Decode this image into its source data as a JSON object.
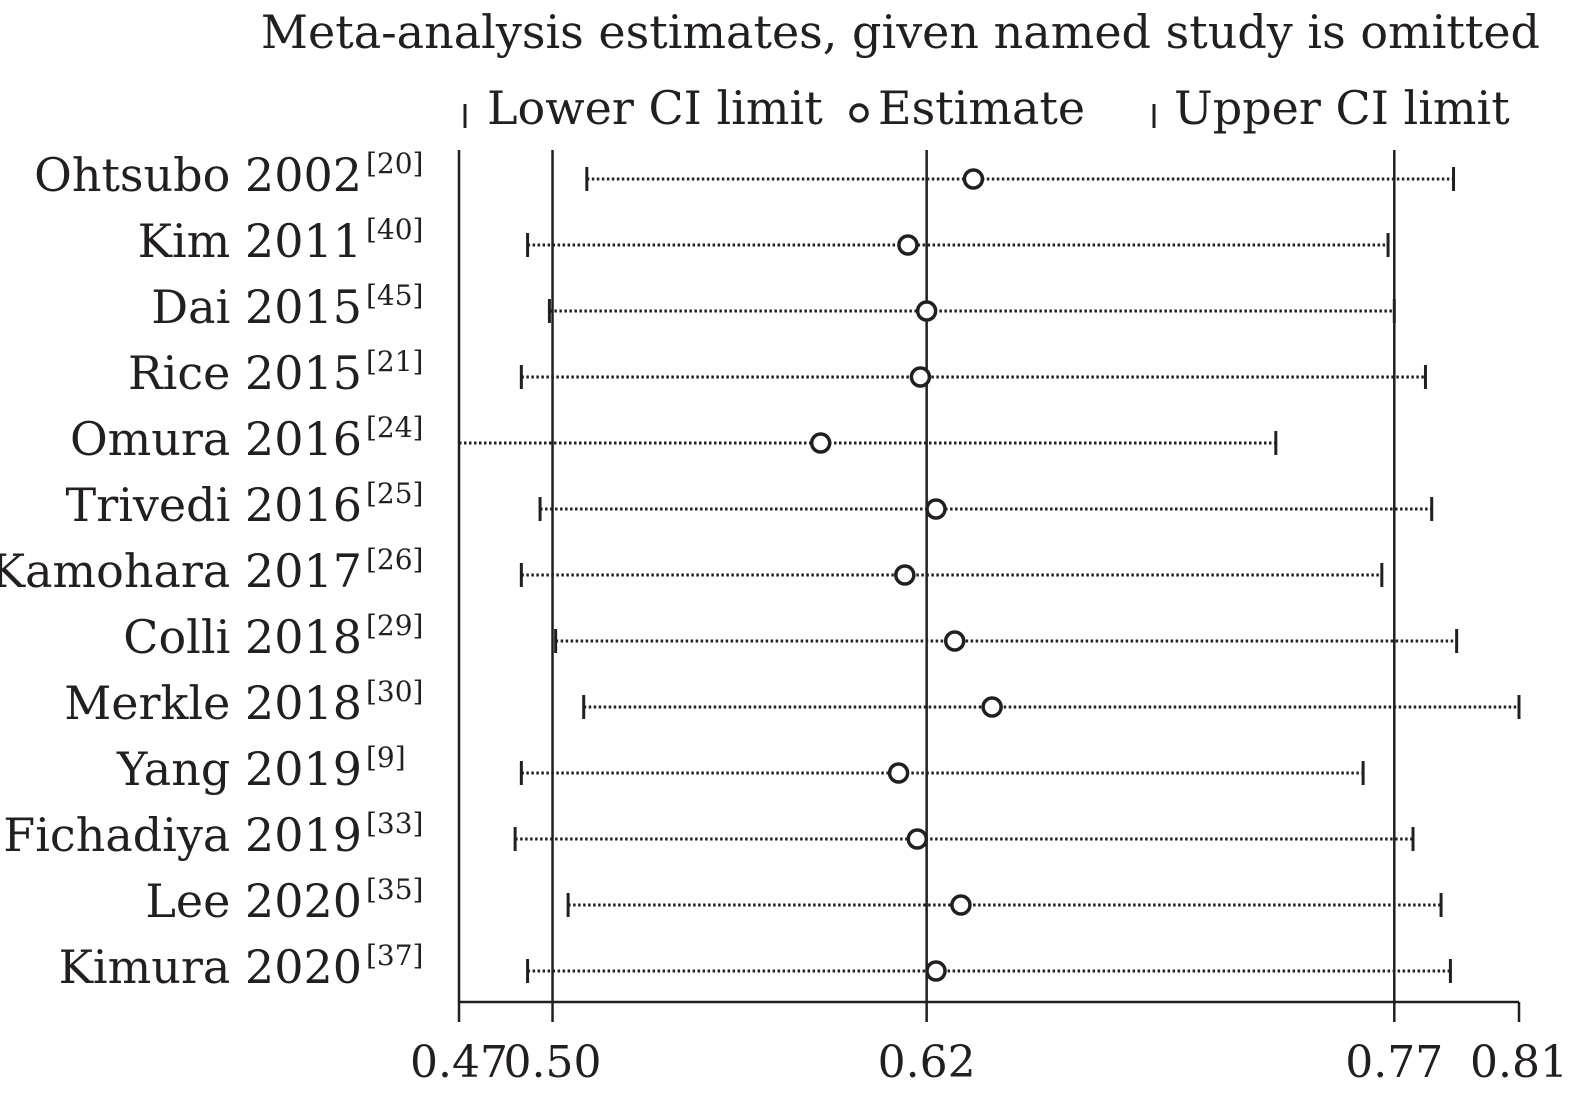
{
  "chart_data": {
    "type": "forest",
    "title": "Meta-analysis estimates, given named study is omitted",
    "legend": {
      "position": "top",
      "lower": "Lower CI limit",
      "estimate": "Estimate",
      "upper": "Upper CI limit"
    },
    "xlim": [
      0.47,
      0.81
    ],
    "ticks": [
      0.47,
      0.5,
      0.62,
      0.77,
      0.81
    ],
    "tick_labels": [
      "0.47",
      "0.50",
      "0.62",
      "0.77",
      "0.81"
    ],
    "reference_lines": [
      0.5,
      0.62,
      0.77
    ],
    "studies": [
      {
        "name": "Ohtsubo 2002",
        "ref": "[20]",
        "lower": 0.511,
        "estimate": 0.635,
        "upper": 0.789
      },
      {
        "name": "Kim 2011",
        "ref": "[40]",
        "lower": 0.492,
        "estimate": 0.614,
        "upper": 0.768
      },
      {
        "name": "Dai 2015",
        "ref": "[45]",
        "lower": 0.499,
        "estimate": 0.62,
        "upper": 0.77
      },
      {
        "name": "Rice 2015",
        "ref": "[21]",
        "lower": 0.49,
        "estimate": 0.618,
        "upper": 0.78
      },
      {
        "name": "Omura 2016",
        "ref": "[24]",
        "lower": 0.47,
        "estimate": 0.586,
        "upper": 0.732
      },
      {
        "name": "Trivedi 2016",
        "ref": "[25]",
        "lower": 0.496,
        "estimate": 0.623,
        "upper": 0.782
      },
      {
        "name": "Kamohara 2017",
        "ref": "[26]",
        "lower": 0.49,
        "estimate": 0.613,
        "upper": 0.766
      },
      {
        "name": "Colli 2018",
        "ref": "[29]",
        "lower": 0.501,
        "estimate": 0.629,
        "upper": 0.79
      },
      {
        "name": "Merkle 2018",
        "ref": "[30]",
        "lower": 0.51,
        "estimate": 0.641,
        "upper": 0.81
      },
      {
        "name": "Yang 2019",
        "ref": "[9]",
        "lower": 0.49,
        "estimate": 0.611,
        "upper": 0.76
      },
      {
        "name": "Fichadiya 2019",
        "ref": "[33]",
        "lower": 0.488,
        "estimate": 0.617,
        "upper": 0.776
      },
      {
        "name": "Lee 2020",
        "ref": "[35]",
        "lower": 0.505,
        "estimate": 0.631,
        "upper": 0.785
      },
      {
        "name": "Kimura 2020",
        "ref": "[37]",
        "lower": 0.492,
        "estimate": 0.623,
        "upper": 0.788
      }
    ]
  }
}
